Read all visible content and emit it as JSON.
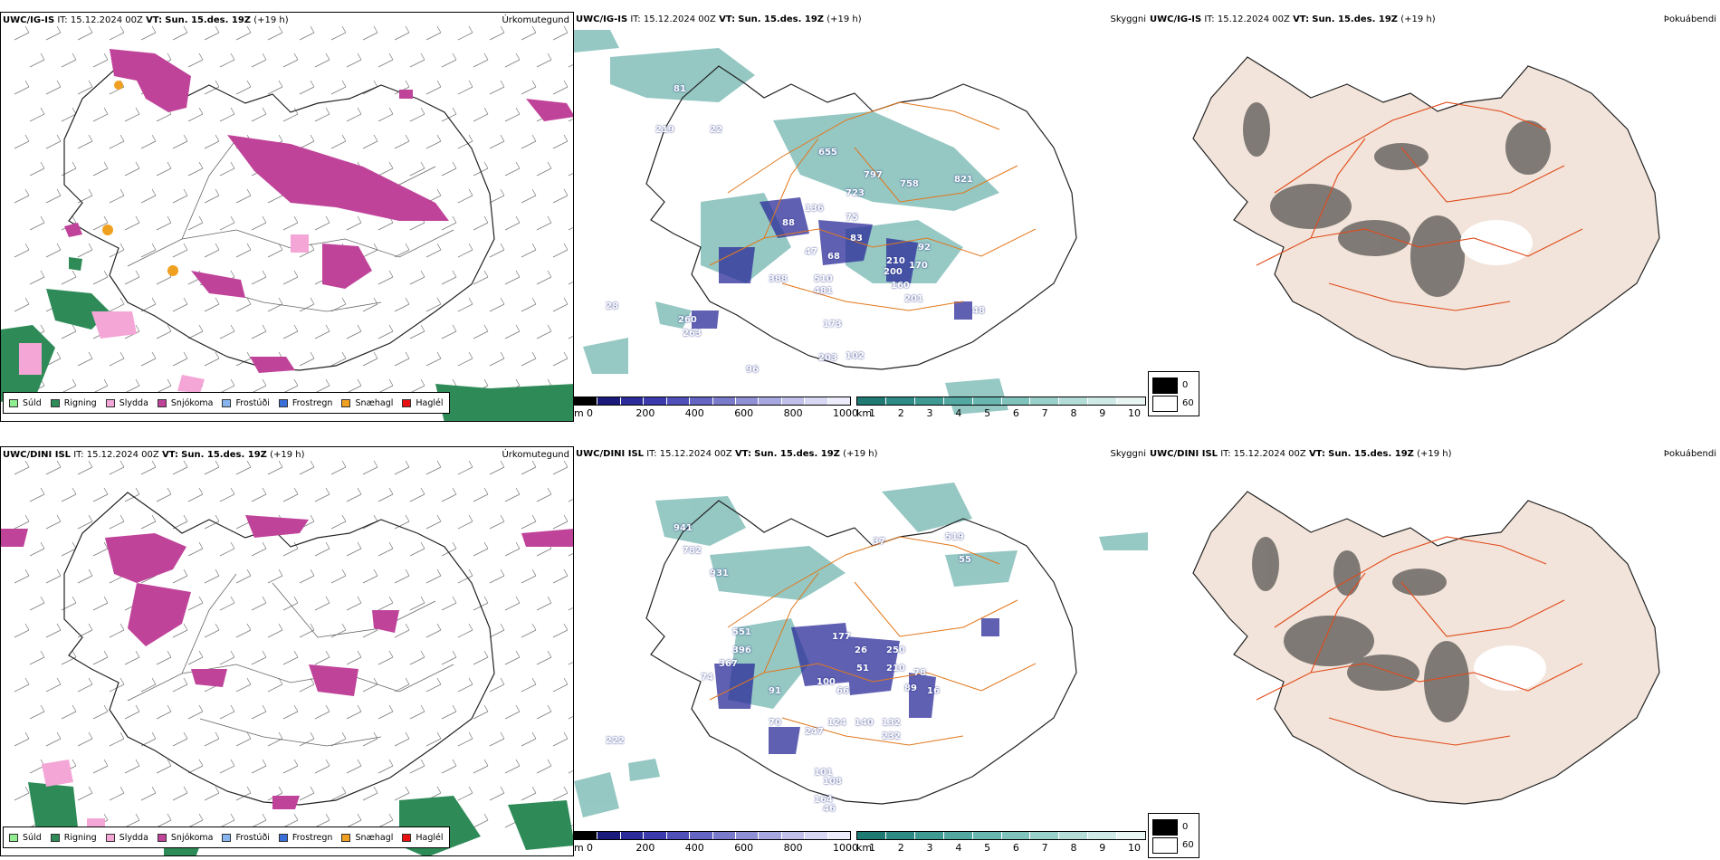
{
  "rows": [
    {
      "model": "UWC/IG-IS",
      "it_label": "IT:",
      "it_value": "15.12.2024 00Z",
      "vt_label": "VT:",
      "vt_value": "Sun. 15.des. 19Z",
      "lead": "(+19 h)"
    },
    {
      "model": "UWC/DINI ISL",
      "it_label": "IT:",
      "it_value": "15.12.2024 00Z",
      "vt_label": "VT:",
      "vt_value": "Sun. 15.des. 19Z",
      "lead": "(+19 h)"
    }
  ],
  "panel_labels": {
    "precip": "Úrkomutegund",
    "visibility": "Skyggni",
    "fog": "Þokuábendi"
  },
  "precip_legend": [
    {
      "label": "Súld",
      "color": "#90ee90"
    },
    {
      "label": "Rigning",
      "color": "#2e8b57"
    },
    {
      "label": "Slydda",
      "color": "#f4a6d7"
    },
    {
      "label": "Snjókoma",
      "color": "#c0439a"
    },
    {
      "label": "Frostúði",
      "color": "#87b5f0"
    },
    {
      "label": "Frostregn",
      "color": "#3a6fd8"
    },
    {
      "label": "Snæhagl",
      "color": "#f0a020"
    },
    {
      "label": "Haglél",
      "color": "#e81010"
    }
  ],
  "ceiling_bar": {
    "unit": "m",
    "ticks": [
      "0",
      "200",
      "400",
      "600",
      "800",
      "1000"
    ],
    "colors": [
      "#000000",
      "#1a1a7a",
      "#2b2b9a",
      "#3b3bae",
      "#5050bb",
      "#6565c4",
      "#7b7bcc",
      "#9090d6",
      "#a8a8e0",
      "#c0c0ea",
      "#d8d8f4",
      "#ececfa"
    ]
  },
  "vis_bar": {
    "unit": "km",
    "ticks": [
      "1",
      "2",
      "3",
      "4",
      "5",
      "6",
      "7",
      "8",
      "9",
      "10"
    ],
    "colors": [
      "#1f7a74",
      "#2e8a84",
      "#3f9a93",
      "#52a8a1",
      "#68b6af",
      "#80c3bd",
      "#9ad0ca",
      "#b5ddd8",
      "#cfe9e6",
      "#e8f5f3"
    ]
  },
  "fog_legend": {
    "high": "0",
    "low": "60"
  },
  "ceiling_labels_top": [
    "81",
    "219",
    "22",
    "655",
    "797",
    "758",
    "821",
    "723",
    "136",
    "88",
    "83",
    "92",
    "68",
    "210",
    "170",
    "200",
    "160",
    "201",
    "510",
    "481",
    "388",
    "28",
    "260",
    "263",
    "96",
    "203",
    "102",
    "48",
    "47",
    "173",
    "75"
  ],
  "ceiling_labels_bottom": [
    "941",
    "782",
    "931",
    "519",
    "55",
    "37",
    "551",
    "396",
    "367",
    "74",
    "26",
    "51",
    "100",
    "66",
    "250",
    "210",
    "78",
    "89",
    "16",
    "124",
    "140",
    "132",
    "232",
    "70",
    "247",
    "222",
    "101",
    "108",
    "164",
    "46",
    "177",
    "91"
  ],
  "colors": {
    "coast": "#222222",
    "roads_vis": "#e2781c",
    "roads_fog": "#e04a1a",
    "land_fog": "#f2e4da",
    "teal": "#3f9a93",
    "snow": "#c0439a",
    "rain": "#2e8b57",
    "sleet": "#f4a6d7"
  }
}
